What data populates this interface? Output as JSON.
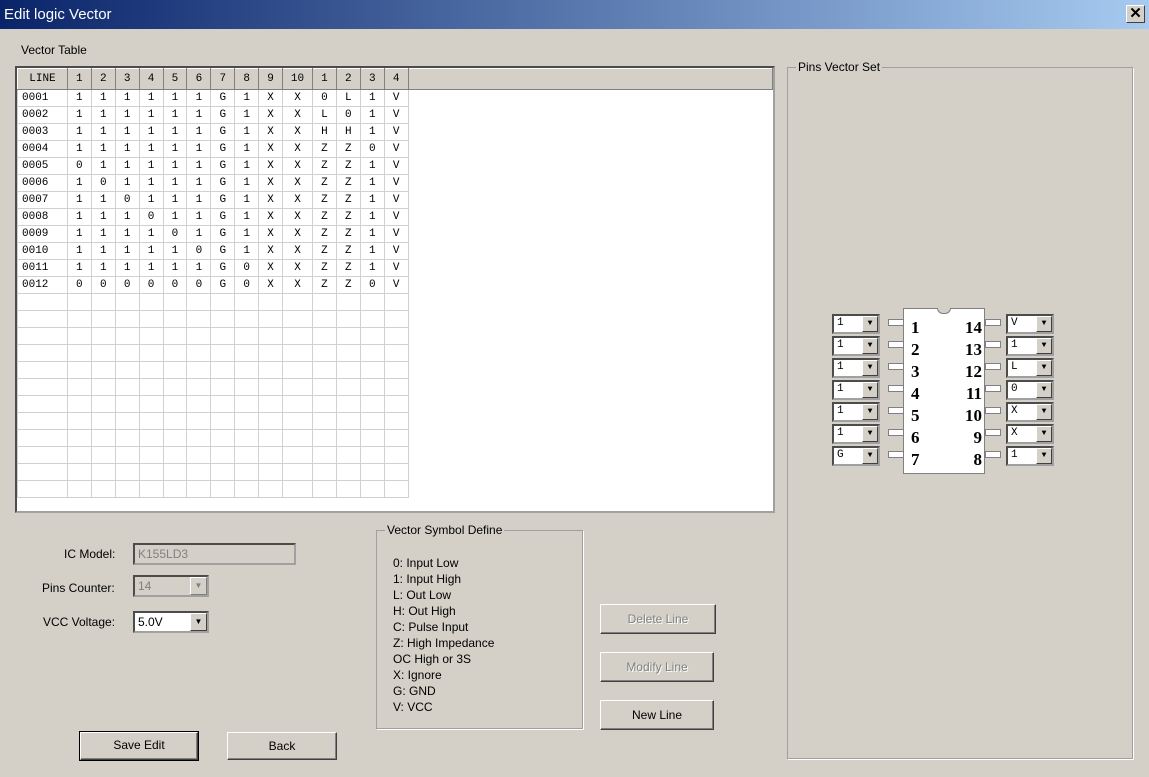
{
  "window": {
    "title": "Edit logic Vector",
    "close": "✕"
  },
  "vector_table": {
    "label": "Vector Table",
    "headers": [
      "LINE",
      "1",
      "2",
      "3",
      "4",
      "5",
      "6",
      "7",
      "8",
      "9",
      "10",
      "1",
      "2",
      "3",
      "4"
    ],
    "rows": [
      [
        "0001",
        "1",
        "1",
        "1",
        "1",
        "1",
        "1",
        "G",
        "1",
        "X",
        "X",
        "0",
        "L",
        "1",
        "V"
      ],
      [
        "0002",
        "1",
        "1",
        "1",
        "1",
        "1",
        "1",
        "G",
        "1",
        "X",
        "X",
        "L",
        "0",
        "1",
        "V"
      ],
      [
        "0003",
        "1",
        "1",
        "1",
        "1",
        "1",
        "1",
        "G",
        "1",
        "X",
        "X",
        "H",
        "H",
        "1",
        "V"
      ],
      [
        "0004",
        "1",
        "1",
        "1",
        "1",
        "1",
        "1",
        "G",
        "1",
        "X",
        "X",
        "Z",
        "Z",
        "0",
        "V"
      ],
      [
        "0005",
        "0",
        "1",
        "1",
        "1",
        "1",
        "1",
        "G",
        "1",
        "X",
        "X",
        "Z",
        "Z",
        "1",
        "V"
      ],
      [
        "0006",
        "1",
        "0",
        "1",
        "1",
        "1",
        "1",
        "G",
        "1",
        "X",
        "X",
        "Z",
        "Z",
        "1",
        "V"
      ],
      [
        "0007",
        "1",
        "1",
        "0",
        "1",
        "1",
        "1",
        "G",
        "1",
        "X",
        "X",
        "Z",
        "Z",
        "1",
        "V"
      ],
      [
        "0008",
        "1",
        "1",
        "1",
        "0",
        "1",
        "1",
        "G",
        "1",
        "X",
        "X",
        "Z",
        "Z",
        "1",
        "V"
      ],
      [
        "0009",
        "1",
        "1",
        "1",
        "1",
        "0",
        "1",
        "G",
        "1",
        "X",
        "X",
        "Z",
        "Z",
        "1",
        "V"
      ],
      [
        "0010",
        "1",
        "1",
        "1",
        "1",
        "1",
        "0",
        "G",
        "1",
        "X",
        "X",
        "Z",
        "Z",
        "1",
        "V"
      ],
      [
        "0011",
        "1",
        "1",
        "1",
        "1",
        "1",
        "1",
        "G",
        "0",
        "X",
        "X",
        "Z",
        "Z",
        "1",
        "V"
      ],
      [
        "0012",
        "0",
        "0",
        "0",
        "0",
        "0",
        "0",
        "G",
        "0",
        "X",
        "X",
        "Z",
        "Z",
        "0",
        "V"
      ]
    ]
  },
  "form": {
    "ic_model_label": "IC Model:",
    "ic_model_value": "K155LD3",
    "pins_counter_label": "Pins Counter:",
    "pins_counter_value": "14",
    "vcc_label": "VCC Voltage:",
    "vcc_value": "5.0V"
  },
  "symbols": {
    "title": "Vector Symbol Define",
    "items": [
      "0: Input Low",
      "1: Input High",
      "L: Out Low",
      "H: Out High",
      "C: Pulse Input",
      "Z: High Impedance",
      " OC High or 3S",
      "X: Ignore",
      "G: GND",
      "V: VCC"
    ]
  },
  "buttons": {
    "delete": "Delete Line",
    "modify": "Modify Line",
    "new": "New Line",
    "save": "Save Edit",
    "back": "Back"
  },
  "pins": {
    "title": "Pins Vector Set",
    "left": [
      {
        "num": "1",
        "value": "1"
      },
      {
        "num": "2",
        "value": "1"
      },
      {
        "num": "3",
        "value": "1"
      },
      {
        "num": "4",
        "value": "1"
      },
      {
        "num": "5",
        "value": "1"
      },
      {
        "num": "6",
        "value": "1"
      },
      {
        "num": "7",
        "value": "G"
      }
    ],
    "right": [
      {
        "num": "14",
        "value": "V"
      },
      {
        "num": "13",
        "value": "1"
      },
      {
        "num": "12",
        "value": "L"
      },
      {
        "num": "11",
        "value": "0"
      },
      {
        "num": "10",
        "value": "X"
      },
      {
        "num": "9",
        "value": "X"
      },
      {
        "num": "8",
        "value": "1"
      }
    ]
  }
}
